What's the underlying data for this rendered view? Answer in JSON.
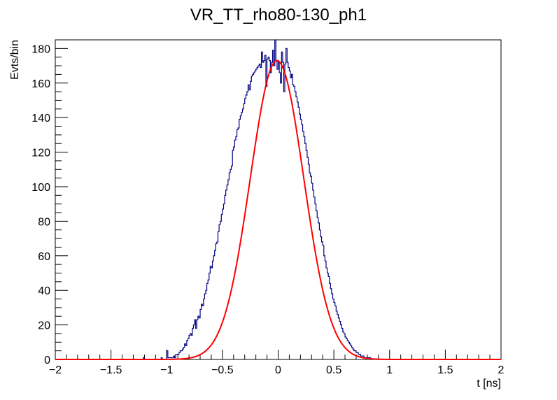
{
  "chart_data": {
    "type": "histogram",
    "title": "VR_TT_rho80-130_ph1",
    "xlabel": "t [ns]",
    "ylabel": "Evts/bin",
    "xlim": [
      -2,
      2
    ],
    "ylim": [
      0,
      185
    ],
    "x_ticks": [
      -2,
      -1.5,
      -1,
      -0.5,
      0,
      0.5,
      1,
      1.5,
      2
    ],
    "x_tick_labels": [
      "−2",
      "−1.5",
      "−1",
      "−0.5",
      "0",
      "0.5",
      "1",
      "1.5",
      "2"
    ],
    "y_ticks": [
      0,
      20,
      40,
      60,
      80,
      100,
      120,
      140,
      160,
      180
    ],
    "y_tick_labels": [
      "0",
      "20",
      "40",
      "60",
      "80",
      "100",
      "120",
      "140",
      "160",
      "180"
    ],
    "bin_width": 0.01,
    "hist_color": "#000080",
    "fit_color": "#ff0000",
    "histogram": {
      "bin_centers": [
        -1.205,
        -1.195,
        -1.185,
        -1.175,
        -1.165,
        -1.155,
        -1.145,
        -1.135,
        -1.125,
        -1.115,
        -1.105,
        -1.095,
        -1.085,
        -1.075,
        -1.065,
        -1.055,
        -1.045,
        -1.035,
        -1.025,
        -1.015,
        -1.005,
        -0.995,
        -0.985,
        -0.975,
        -0.965,
        -0.955,
        -0.945,
        -0.935,
        -0.925,
        -0.915,
        -0.905,
        -0.895,
        -0.885,
        -0.875,
        -0.865,
        -0.855,
        -0.845,
        -0.835,
        -0.825,
        -0.815,
        -0.805,
        -0.795,
        -0.785,
        -0.775,
        -0.765,
        -0.755,
        -0.745,
        -0.735,
        -0.725,
        -0.715,
        -0.705,
        -0.695,
        -0.685,
        -0.675,
        -0.665,
        -0.655,
        -0.645,
        -0.635,
        -0.625,
        -0.615,
        -0.605,
        -0.595,
        -0.585,
        -0.575,
        -0.565,
        -0.555,
        -0.545,
        -0.535,
        -0.525,
        -0.515,
        -0.505,
        -0.495,
        -0.485,
        -0.475,
        -0.465,
        -0.455,
        -0.445,
        -0.435,
        -0.425,
        -0.415,
        -0.405,
        -0.395,
        -0.385,
        -0.375,
        -0.365,
        -0.355,
        -0.345,
        -0.335,
        -0.325,
        -0.315,
        -0.305,
        -0.295,
        -0.285,
        -0.275,
        -0.265,
        -0.255,
        -0.245,
        -0.235,
        -0.225,
        -0.215,
        -0.205,
        -0.195,
        -0.185,
        -0.175,
        -0.165,
        -0.155,
        -0.145,
        -0.135,
        -0.125,
        -0.115,
        -0.105,
        -0.095,
        -0.085,
        -0.075,
        -0.065,
        -0.055,
        -0.045,
        -0.035,
        -0.025,
        -0.015,
        -0.005,
        0.005,
        0.015,
        0.025,
        0.035,
        0.045,
        0.055,
        0.065,
        0.075,
        0.085,
        0.095,
        0.105,
        0.115,
        0.125,
        0.135,
        0.145,
        0.155,
        0.165,
        0.175,
        0.185,
        0.195,
        0.205,
        0.215,
        0.225,
        0.235,
        0.245,
        0.255,
        0.265,
        0.275,
        0.285,
        0.295,
        0.305,
        0.315,
        0.325,
        0.335,
        0.345,
        0.355,
        0.365,
        0.375,
        0.385,
        0.395,
        0.405,
        0.415,
        0.425,
        0.435,
        0.445,
        0.455,
        0.465,
        0.475,
        0.485,
        0.495,
        0.505,
        0.515,
        0.525,
        0.535,
        0.545,
        0.555,
        0.565,
        0.575,
        0.585,
        0.595,
        0.605,
        0.615,
        0.625,
        0.635,
        0.645,
        0.655,
        0.665,
        0.675,
        0.685,
        0.695,
        0.705,
        0.715,
        0.725,
        0.735,
        0.745,
        0.755,
        0.765,
        0.775,
        0.785,
        0.795,
        0.805,
        0.815,
        0.825,
        0.835,
        0.845,
        0.855,
        0.865,
        0.875,
        0.885,
        0.895,
        0.905,
        0.915,
        0.925,
        0.935,
        0.945,
        0.955,
        0.965,
        0.975,
        0.985,
        0.995,
        1.005,
        1.015,
        1.025,
        1.035,
        1.045,
        1.055,
        1.065,
        1.075,
        1.085,
        1.095,
        1.105,
        1.115,
        1.125,
        1.135,
        1.145,
        1.155,
        1.165,
        1.175,
        1.185,
        1.195,
        1.205
      ],
      "counts": [
        1,
        0,
        0,
        0,
        0,
        0,
        0,
        0,
        0,
        0,
        0,
        0,
        0,
        0,
        0,
        0,
        1,
        0,
        0,
        0,
        0,
        5,
        1,
        1,
        1,
        1,
        1,
        2,
        1,
        3,
        3,
        3,
        4,
        5,
        5,
        6,
        7,
        9,
        8,
        11,
        12,
        14,
        15,
        14,
        18,
        20,
        23,
        18,
        23,
        25,
        24,
        29,
        32,
        31,
        35,
        38,
        40,
        44,
        46,
        50,
        54,
        53,
        57,
        60,
        63,
        67,
        68,
        74,
        78,
        80,
        84,
        87,
        90,
        95,
        98,
        101,
        104,
        108,
        110,
        112,
        121,
        123,
        127,
        129,
        133,
        134,
        139,
        141,
        143,
        145,
        148,
        151,
        153,
        155,
        159,
        156,
        161,
        164,
        165,
        166,
        167,
        168,
        169,
        170,
        171,
        169,
        178,
        172,
        173,
        176,
        158,
        174,
        175,
        173,
        166,
        172,
        179,
        170,
        185,
        173,
        168,
        172,
        166,
        160,
        178,
        172,
        155,
        171,
        180,
        172,
        169,
        167,
        163,
        165,
        159,
        158,
        155,
        152,
        149,
        146,
        142,
        139,
        136,
        132,
        129,
        125,
        121,
        117,
        113,
        108,
        106,
        102,
        98,
        94,
        90,
        86,
        82,
        79,
        75,
        71,
        68,
        66,
        60,
        57,
        53,
        50,
        48,
        44,
        41,
        38,
        35,
        33,
        31,
        28,
        26,
        24,
        22,
        20,
        18,
        16,
        15,
        13,
        12,
        11,
        10,
        9,
        8,
        7,
        6,
        5,
        5,
        4,
        4,
        3,
        3,
        2,
        2,
        2,
        1,
        1,
        1,
        1,
        1,
        1,
        0,
        0,
        0,
        0,
        0,
        0,
        0,
        0,
        0,
        0,
        0,
        0,
        0,
        0,
        0,
        0,
        0,
        0,
        0,
        0,
        0,
        0,
        0,
        0,
        0,
        0,
        0,
        0,
        0,
        0,
        0,
        0,
        0,
        0,
        0,
        0,
        0,
        0,
        0,
        0,
        0,
        0,
        0,
        0,
        0,
        0,
        0,
        0,
        0,
        0
      ]
    },
    "fit": {
      "function": "gaussian",
      "amplitude": 173,
      "mean": -0.01,
      "sigma": 0.24,
      "x_range": [
        -2,
        2
      ]
    }
  }
}
